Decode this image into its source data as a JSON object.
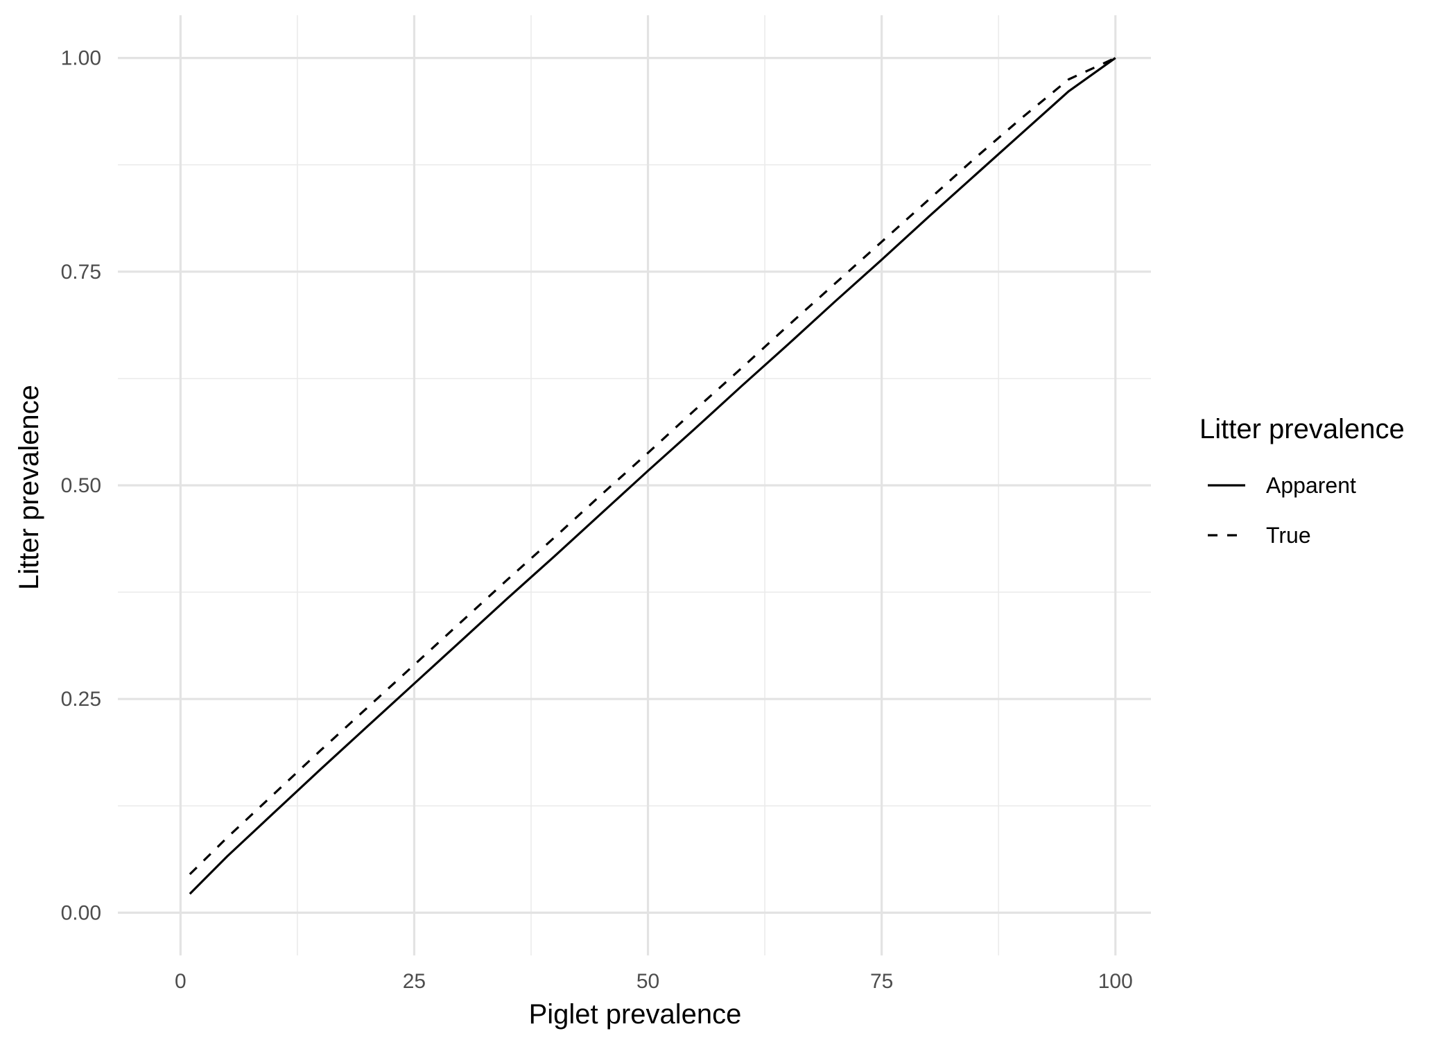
{
  "chart_data": {
    "type": "line",
    "xlabel": "Piglet prevalence",
    "ylabel": "Litter prevalence",
    "xlim": [
      -6.7,
      103.8
    ],
    "ylim": [
      -0.05,
      1.05
    ],
    "x_ticks": [
      0,
      25,
      50,
      75,
      100
    ],
    "x_tick_labels": [
      "0",
      "25",
      "50",
      "75",
      "100"
    ],
    "x_minor_ticks": [
      12.5,
      37.5,
      62.5,
      87.5
    ],
    "y_ticks": [
      0,
      0.25,
      0.5,
      0.75,
      1
    ],
    "y_tick_labels": [
      "0.00",
      "0.25",
      "0.50",
      "0.75",
      "1.00"
    ],
    "y_minor_ticks": [
      0.125,
      0.375,
      0.625,
      0.875
    ],
    "grid": true,
    "legend": {
      "title": "Litter prevalence",
      "position": "right"
    },
    "series": [
      {
        "name": "Apparent",
        "linestyle": "solid",
        "color": "#000000",
        "x": [
          1,
          5,
          10,
          15,
          20,
          25,
          30,
          35,
          40,
          45,
          50,
          55,
          60,
          65,
          70,
          75,
          80,
          85,
          90,
          95,
          100
        ],
        "y": [
          0.022,
          0.066,
          0.117,
          0.168,
          0.218,
          0.268,
          0.318,
          0.368,
          0.417,
          0.467,
          0.517,
          0.566,
          0.616,
          0.665,
          0.715,
          0.764,
          0.814,
          0.863,
          0.912,
          0.961,
          1.0
        ]
      },
      {
        "name": "True",
        "linestyle": "dashed",
        "color": "#000000",
        "x": [
          1,
          5,
          10,
          15,
          20,
          25,
          30,
          35,
          40,
          45,
          50,
          55,
          60,
          65,
          70,
          75,
          80,
          85,
          90,
          95,
          100
        ],
        "y": [
          0.045,
          0.088,
          0.139,
          0.19,
          0.24,
          0.29,
          0.34,
          0.39,
          0.439,
          0.489,
          0.538,
          0.588,
          0.637,
          0.687,
          0.736,
          0.785,
          0.834,
          0.883,
          0.93,
          0.975,
          1.0
        ]
      }
    ]
  }
}
